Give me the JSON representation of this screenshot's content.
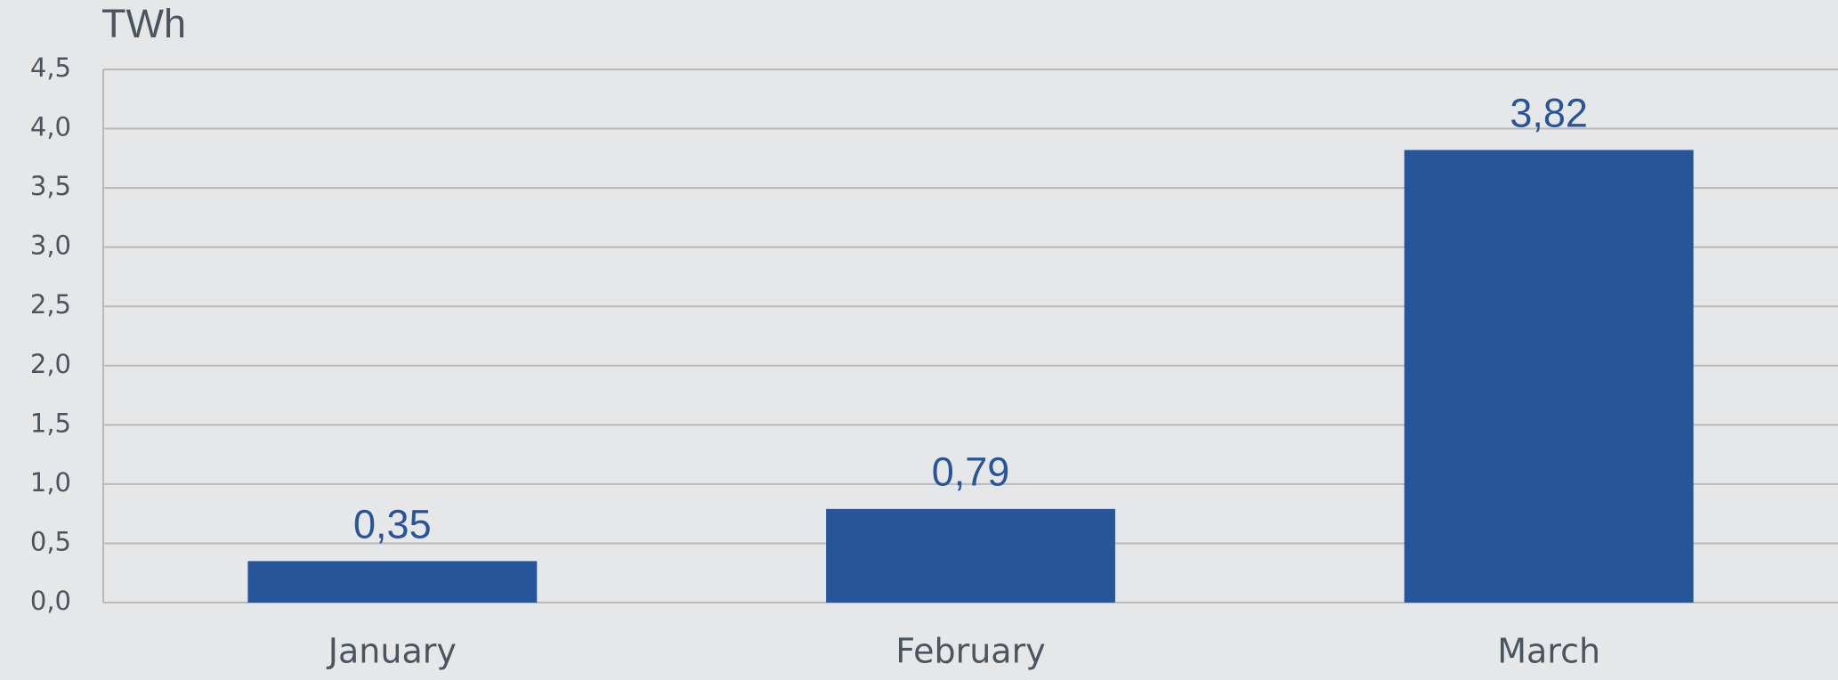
{
  "chart_data": {
    "type": "bar",
    "y_label": "TWh",
    "categories": [
      "January",
      "February",
      "March"
    ],
    "values": [
      0.35,
      0.79,
      3.82
    ],
    "value_labels": [
      "0,35",
      "0,79",
      "3,82"
    ],
    "color": "#27559a",
    "ylim": [
      0,
      4.5
    ],
    "yticks": [
      {
        "value": 0,
        "label": "0,0"
      },
      {
        "value": 0.5,
        "label": "0,5"
      },
      {
        "value": 1,
        "label": "1,0"
      },
      {
        "value": 1.5,
        "label": "1,5"
      },
      {
        "value": 2,
        "label": "2,0"
      },
      {
        "value": 2.5,
        "label": "2,5"
      },
      {
        "value": 3,
        "label": "3,0"
      },
      {
        "value": 3.5,
        "label": "3,5"
      },
      {
        "value": 4,
        "label": "4,0"
      },
      {
        "value": 4.5,
        "label": "4,5"
      }
    ],
    "grid": true
  }
}
